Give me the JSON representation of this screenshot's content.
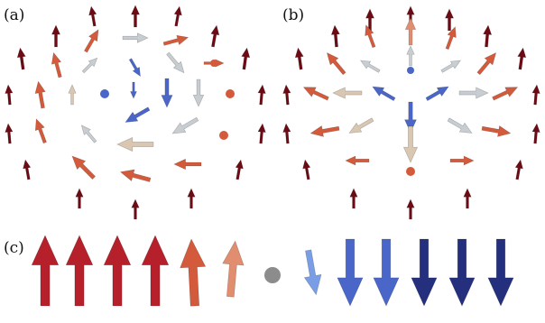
{
  "panels": {
    "a": {
      "label": "(a)"
    },
    "b": {
      "label": "(b)"
    },
    "c": {
      "label": "(c)"
    }
  },
  "colors": {
    "dark_red": "#6e0a14",
    "red": "#b5202a",
    "orange_red": "#d45a3c",
    "salmon": "#e08d70",
    "beige": "#d9c7b2",
    "light_gray": "#c8cdd2",
    "gray_dot": "#8c8c8c",
    "light_blue": "#7a9ee6",
    "mid_blue": "#4a66c8",
    "dark_blue": "#24307e"
  },
  "legend_row_c": [
    {
      "state": "up",
      "color_key": "red"
    },
    {
      "state": "up",
      "color_key": "red"
    },
    {
      "state": "up",
      "color_key": "red"
    },
    {
      "state": "up",
      "color_key": "red"
    },
    {
      "state": "up-tilt",
      "color_key": "orange_red"
    },
    {
      "state": "up-small",
      "color_key": "salmon"
    },
    {
      "state": "in-plane",
      "color_key": "gray_dot"
    },
    {
      "state": "down-small",
      "color_key": "light_blue"
    },
    {
      "state": "down",
      "color_key": "mid_blue"
    },
    {
      "state": "down",
      "color_key": "mid_blue"
    },
    {
      "state": "down",
      "color_key": "dark_blue"
    },
    {
      "state": "down",
      "color_key": "dark_blue"
    },
    {
      "state": "down",
      "color_key": "dark_blue"
    }
  ]
}
